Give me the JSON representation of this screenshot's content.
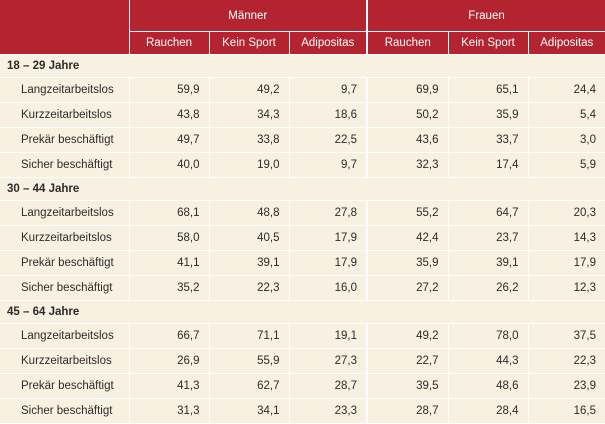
{
  "header": {
    "groups": [
      "Männer",
      "Frauen"
    ],
    "columns": [
      "Rauchen",
      "Kein Sport",
      "Adipositas",
      "Rauchen",
      "Kein Sport",
      "Adipositas"
    ]
  },
  "sections": [
    {
      "title": "18 – 29 Jahre",
      "rows": [
        {
          "label": "Langzeitarbeitslos",
          "values": [
            "59,9",
            "49,2",
            "9,7",
            "69,9",
            "65,1",
            "24,4"
          ]
        },
        {
          "label": "Kurzzeitarbeitslos",
          "values": [
            "43,8",
            "34,3",
            "18,6",
            "50,2",
            "35,9",
            "5,4"
          ]
        },
        {
          "label": "Prekär beschäftigt",
          "values": [
            "49,7",
            "33,8",
            "22,5",
            "43,6",
            "33,7",
            "3,0"
          ]
        },
        {
          "label": "Sicher beschäftigt",
          "values": [
            "40,0",
            "19,0",
            "9,7",
            "32,3",
            "17,4",
            "5,9"
          ]
        }
      ]
    },
    {
      "title": "30 – 44 Jahre",
      "rows": [
        {
          "label": "Langzeitarbeitslos",
          "values": [
            "68,1",
            "48,8",
            "27,8",
            "55,2",
            "64,7",
            "20,3"
          ]
        },
        {
          "label": "Kurzzeitarbeitslos",
          "values": [
            "58,0",
            "40,5",
            "17,9",
            "42,4",
            "23,7",
            "14,3"
          ]
        },
        {
          "label": "Prekär beschäftigt",
          "values": [
            "41,1",
            "39,1",
            "17,9",
            "35,9",
            "39,1",
            "17,9"
          ]
        },
        {
          "label": "Sicher beschäftigt",
          "values": [
            "35,2",
            "22,3",
            "16,0",
            "27,2",
            "26,2",
            "12,3"
          ]
        }
      ]
    },
    {
      "title": "45 – 64 Jahre",
      "rows": [
        {
          "label": "Langzeitarbeitslos",
          "values": [
            "66,7",
            "71,1",
            "19,1",
            "49,2",
            "78,0",
            "37,5"
          ]
        },
        {
          "label": "Kurzzeitarbeitslos",
          "values": [
            "26,9",
            "55,9",
            "27,3",
            "22,7",
            "44,3",
            "22,3"
          ]
        },
        {
          "label": "Prekär beschäftigt",
          "values": [
            "41,3",
            "62,7",
            "28,7",
            "39,5",
            "48,6",
            "23,9"
          ]
        },
        {
          "label": "Sicher beschäftigt",
          "values": [
            "31,3",
            "34,1",
            "23,3",
            "28,7",
            "28,4",
            "16,5"
          ]
        }
      ]
    }
  ]
}
